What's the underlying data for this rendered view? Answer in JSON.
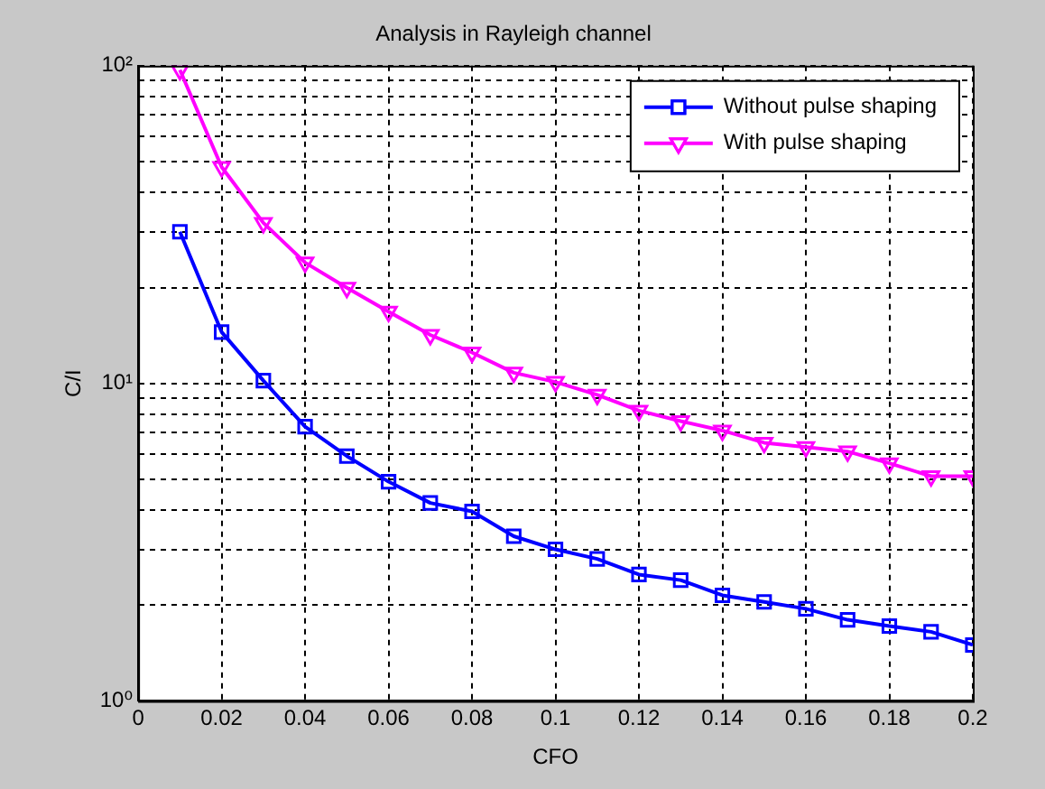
{
  "chart_data": {
    "type": "line",
    "title": "Analysis in Rayleigh channel",
    "xlabel": "CFO",
    "ylabel": "C/I",
    "x": [
      0.01,
      0.02,
      0.03,
      0.04,
      0.05,
      0.06,
      0.07,
      0.08,
      0.09,
      0.1,
      0.11,
      0.12,
      0.13,
      0.14,
      0.15,
      0.16,
      0.17,
      0.18,
      0.19,
      0.2
    ],
    "series": [
      {
        "name": "Without pulse shaping",
        "color": "#0000ff",
        "marker": "square",
        "values": [
          30,
          14.5,
          10.2,
          7.3,
          5.9,
          4.9,
          4.2,
          3.95,
          3.3,
          3.0,
          2.8,
          2.5,
          2.4,
          2.15,
          2.05,
          1.95,
          1.8,
          1.72,
          1.65,
          1.5
        ]
      },
      {
        "name": "With pulse shaping",
        "color": "#ff00ff",
        "marker": "triangle",
        "values": [
          97,
          48,
          32,
          24,
          20,
          16.8,
          14.2,
          12.5,
          10.8,
          10.1,
          9.2,
          8.2,
          7.6,
          7.1,
          6.5,
          6.3,
          6.1,
          5.6,
          5.1,
          5.1
        ]
      }
    ],
    "log": "y",
    "grid": true,
    "legend": "top right",
    "line_style": "solid",
    "xlim": [
      0,
      0.2
    ],
    "xticks": [
      0,
      0.02,
      0.04,
      0.06,
      0.08,
      0.1,
      0.12,
      0.14,
      0.16,
      0.18,
      0.2
    ],
    "ylim": [
      1,
      100
    ],
    "yticks": [
      {
        "value": 1,
        "label": "10⁰"
      },
      {
        "value": 2,
        "label": null
      },
      {
        "value": 3,
        "label": null
      },
      {
        "value": 4,
        "label": null
      },
      {
        "value": 5,
        "label": null
      },
      {
        "value": 6,
        "label": null
      },
      {
        "value": 7,
        "label": null
      },
      {
        "value": 8,
        "label": null
      },
      {
        "value": 9,
        "label": null
      },
      {
        "value": 10,
        "label": "10¹"
      },
      {
        "value": 20,
        "label": null
      },
      {
        "value": 30,
        "label": null
      },
      {
        "value": 40,
        "label": null
      },
      {
        "value": 50,
        "label": null
      },
      {
        "value": 60,
        "label": null
      },
      {
        "value": 70,
        "label": null
      },
      {
        "value": 80,
        "label": null
      },
      {
        "value": 90,
        "label": null
      },
      {
        "value": 100,
        "label": "10²"
      }
    ]
  }
}
